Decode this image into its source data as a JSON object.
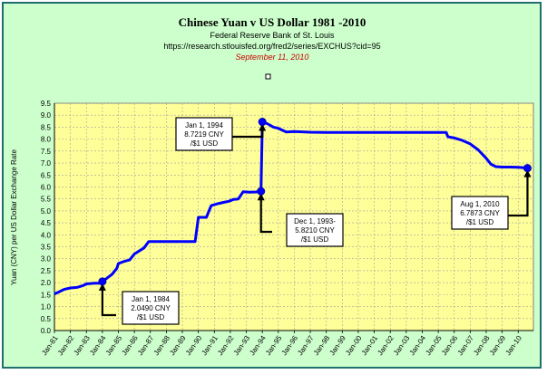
{
  "chart_data": {
    "type": "line",
    "title": "Chinese Yuan v US Dollar 1981 -2010",
    "subtitle_lines": [
      "Federal Reserve Bank of St. Louis",
      "https://research.stlouisfed.org/fred2/series/EXCHUS?cid=95"
    ],
    "date_line": "September 11, 2010",
    "ylabel": "Yuan (CNY) per US Dollar Exchange Rate",
    "xlabel": "",
    "ylim": [
      0,
      9.5
    ],
    "yticks": [
      "0.0",
      "0.5",
      "1.0",
      "1.5",
      "2.0",
      "2.5",
      "3.0",
      "3.5",
      "4.0",
      "4.5",
      "5.0",
      "5.5",
      "6.0",
      "6.5",
      "7.0",
      "7.5",
      "8.0",
      "8.5",
      "9.0",
      "9.5"
    ],
    "xlim": [
      1981.0,
      2010.95
    ],
    "xticks": [
      "Jan-81",
      "Jan-82",
      "Jan-83",
      "Jan-84",
      "Jan-85",
      "Jan-86",
      "Jan-87",
      "Jan-88",
      "Jan-89",
      "Jan-90",
      "Jan-91",
      "Jan-92",
      "Jan-93",
      "Jan-94",
      "Jan-95",
      "Jan-96",
      "Jan-97",
      "Jan-98",
      "Jan-99",
      "Jan-00",
      "Jan-01",
      "Jan-02",
      "Jan-03",
      "Jan-04",
      "Jan-05",
      "Jan-06",
      "Jan-07",
      "Jan-08",
      "Jan-09",
      "Jan-10"
    ],
    "grid": true,
    "series": [
      {
        "color": "#0000ff",
        "points": [
          [
            1981.0,
            1.53
          ],
          [
            1981.3,
            1.62
          ],
          [
            1981.6,
            1.72
          ],
          [
            1982.0,
            1.78
          ],
          [
            1982.4,
            1.8
          ],
          [
            1982.8,
            1.88
          ],
          [
            1983.0,
            1.95
          ],
          [
            1983.5,
            1.98
          ],
          [
            1983.8,
            1.98
          ],
          [
            1984.0,
            2.049
          ],
          [
            1984.3,
            2.2
          ],
          [
            1984.6,
            2.35
          ],
          [
            1984.9,
            2.6
          ],
          [
            1985.0,
            2.8
          ],
          [
            1985.4,
            2.9
          ],
          [
            1985.7,
            2.95
          ],
          [
            1986.0,
            3.2
          ],
          [
            1986.6,
            3.45
          ],
          [
            1986.9,
            3.72
          ],
          [
            1987.5,
            3.72
          ],
          [
            1988.5,
            3.72
          ],
          [
            1989.0,
            3.72
          ],
          [
            1989.8,
            3.72
          ],
          [
            1990.0,
            4.73
          ],
          [
            1990.5,
            4.73
          ],
          [
            1990.8,
            5.22
          ],
          [
            1991.2,
            5.3
          ],
          [
            1991.6,
            5.36
          ],
          [
            1991.9,
            5.4
          ],
          [
            1992.2,
            5.48
          ],
          [
            1992.5,
            5.5
          ],
          [
            1992.8,
            5.8
          ],
          [
            1993.2,
            5.78
          ],
          [
            1993.6,
            5.79
          ],
          [
            1993.917,
            5.821
          ],
          [
            1994.0,
            8.7219
          ],
          [
            1994.3,
            8.65
          ],
          [
            1994.7,
            8.5
          ],
          [
            1995.0,
            8.45
          ],
          [
            1995.5,
            8.3
          ],
          [
            1996.0,
            8.32
          ],
          [
            1997.0,
            8.29
          ],
          [
            1998.0,
            8.28
          ],
          [
            2000.0,
            8.28
          ],
          [
            2002.0,
            8.28
          ],
          [
            2004.0,
            8.28
          ],
          [
            2005.5,
            8.28
          ],
          [
            2005.6,
            8.1
          ],
          [
            2006.0,
            8.05
          ],
          [
            2006.5,
            7.95
          ],
          [
            2007.0,
            7.8
          ],
          [
            2007.5,
            7.55
          ],
          [
            2008.0,
            7.2
          ],
          [
            2008.3,
            6.95
          ],
          [
            2008.6,
            6.85
          ],
          [
            2009.0,
            6.83
          ],
          [
            2009.5,
            6.83
          ],
          [
            2010.0,
            6.82
          ],
          [
            2010.3,
            6.81
          ],
          [
            2010.58,
            6.7873
          ]
        ]
      }
    ],
    "annotations": [
      {
        "x": 1984.0,
        "y": 2.049,
        "lines": [
          "Jan 1, 1984",
          "2.0490 CNY",
          "/$1 USD"
        ]
      },
      {
        "x": 1994.0,
        "y": 8.7219,
        "lines": [
          "Jan 1, 1994",
          "8.7219 CNY",
          "/$1 USD"
        ]
      },
      {
        "x": 1993.917,
        "y": 5.821,
        "lines": [
          "Dec 1, 1993-",
          "5.8210 CNY",
          "/$1 USD"
        ]
      },
      {
        "x": 2010.58,
        "y": 6.7873,
        "lines": [
          "Aug 1, 2010",
          "6.7873 CNY",
          "/$1 USD"
        ]
      }
    ]
  }
}
